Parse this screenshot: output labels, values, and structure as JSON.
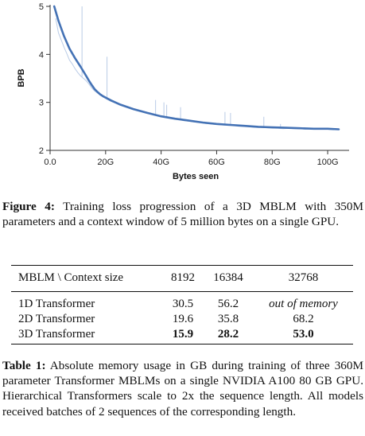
{
  "chart_data": {
    "type": "line",
    "xlabel": "Bytes seen",
    "ylabel": "BPB",
    "xlim": [
      0,
      106
    ],
    "ylim": [
      2,
      5
    ],
    "x_ticks": [
      {
        "value": 0,
        "label": "0.0"
      },
      {
        "value": 20,
        "label": "20G"
      },
      {
        "value": 40,
        "label": "40G"
      },
      {
        "value": 60,
        "label": "60G"
      },
      {
        "value": 80,
        "label": "80G"
      },
      {
        "value": 100,
        "label": "100G"
      }
    ],
    "y_ticks": [
      {
        "value": 2,
        "label": "2"
      },
      {
        "value": 3,
        "label": "3"
      },
      {
        "value": 4,
        "label": "4"
      },
      {
        "value": 5,
        "label": "5"
      }
    ],
    "series": [
      {
        "style": "smoothed",
        "color": "#4472b5",
        "x": [
          1.5,
          3,
          5,
          7,
          9,
          11,
          13,
          14,
          15,
          16,
          17,
          18,
          19,
          20,
          22,
          25,
          30,
          35,
          40,
          45,
          50,
          55,
          60,
          65,
          70,
          75,
          80,
          85,
          90,
          95,
          100,
          104
        ],
        "y": [
          5.0,
          4.7,
          4.38,
          4.12,
          3.92,
          3.74,
          3.55,
          3.45,
          3.36,
          3.28,
          3.22,
          3.17,
          3.13,
          3.1,
          3.04,
          2.96,
          2.86,
          2.78,
          2.71,
          2.66,
          2.62,
          2.58,
          2.55,
          2.53,
          2.51,
          2.49,
          2.48,
          2.47,
          2.46,
          2.45,
          2.45,
          2.44
        ]
      },
      {
        "style": "raw",
        "color": "#b9cbe6",
        "x": [
          2,
          3,
          4,
          5,
          6,
          7,
          8,
          9,
          10,
          11,
          12,
          13,
          14,
          15,
          16,
          17,
          18,
          19,
          20,
          22,
          24,
          26,
          28,
          30,
          32,
          34,
          36,
          38,
          40,
          42,
          44,
          46,
          48,
          50,
          52,
          54,
          56,
          58,
          60,
          62,
          64,
          66,
          68,
          70,
          72,
          74,
          76,
          78,
          80,
          82,
          84,
          86,
          88,
          90,
          92,
          94,
          96,
          98,
          100,
          102,
          104
        ],
        "y": [
          4.75,
          4.45,
          4.3,
          4.15,
          4.02,
          3.88,
          3.8,
          3.7,
          3.62,
          3.55,
          3.5,
          3.45,
          3.38,
          3.3,
          3.24,
          3.2,
          3.15,
          3.12,
          3.08,
          3.02,
          2.98,
          2.93,
          2.89,
          2.85,
          2.82,
          2.8,
          2.76,
          2.74,
          2.7,
          2.69,
          2.66,
          2.65,
          2.62,
          2.61,
          2.59,
          2.58,
          2.56,
          2.55,
          2.54,
          2.53,
          2.52,
          2.52,
          2.5,
          2.5,
          2.49,
          2.48,
          2.48,
          2.47,
          2.46,
          2.46,
          2.45,
          2.46,
          2.45,
          2.45,
          2.44,
          2.45,
          2.44,
          2.44,
          2.44,
          2.43,
          2.44
        ],
        "spikes": [
          {
            "x": 11.5,
            "y": 5.0
          },
          {
            "x": 20.5,
            "y": 3.95
          },
          {
            "x": 38,
            "y": 3.05
          },
          {
            "x": 41,
            "y": 3.0
          },
          {
            "x": 42,
            "y": 2.95
          },
          {
            "x": 47,
            "y": 2.9
          },
          {
            "x": 63,
            "y": 2.8
          },
          {
            "x": 65,
            "y": 2.78
          },
          {
            "x": 77,
            "y": 2.7
          },
          {
            "x": 83,
            "y": 2.55
          }
        ]
      }
    ]
  },
  "figure_caption": {
    "label": "Figure 4:",
    "text": " Training loss progression of a 3D MBLM with 350M parameters and a context window of 5 million bytes on a single GPU."
  },
  "table": {
    "header": [
      "MBLM \\ Context size",
      "8192",
      "16384",
      "32768"
    ],
    "rows": [
      {
        "model": "1D Transformer",
        "c8192": "30.5",
        "c16384": "56.2",
        "c32768": "out of memory"
      },
      {
        "model": "2D Transformer",
        "c8192": "19.6",
        "c16384": "35.8",
        "c32768": "68.2"
      },
      {
        "model": "3D Transformer",
        "c8192": "15.9",
        "c16384": "28.2",
        "c32768": "53.0"
      }
    ]
  },
  "table_caption": {
    "label": "Table 1:",
    "text": " Absolute memory usage in GB during training of three 360M parameter Transformer MBLMs on a single NVIDIA A100 80 GB GPU. Hierarchical Transformers scale to 2x the sequence length. All models received batches of 2 sequences of the corresponding length."
  }
}
